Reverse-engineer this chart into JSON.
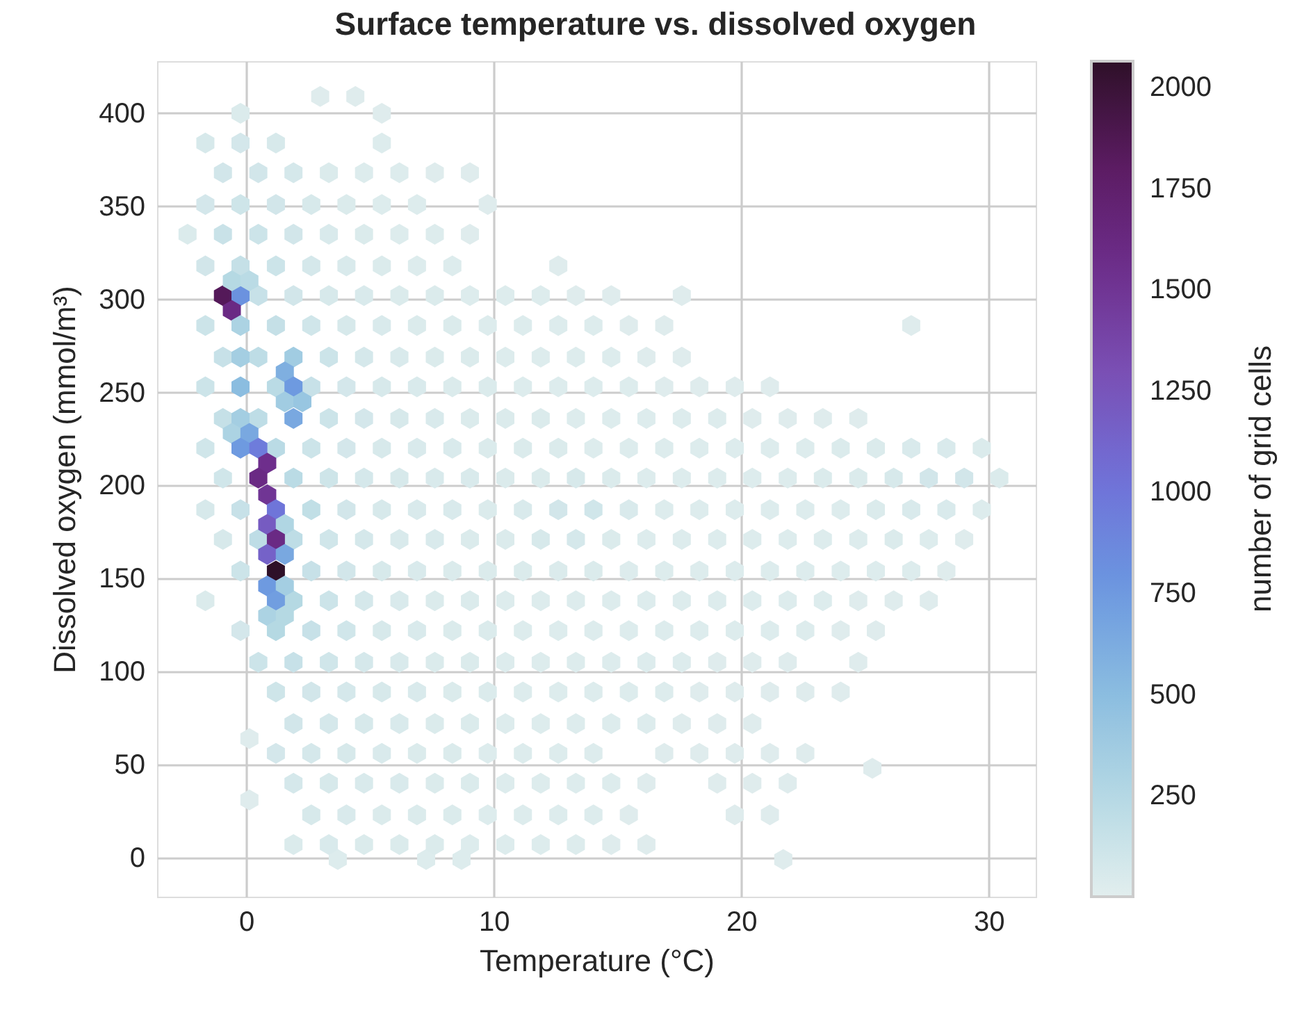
{
  "chart_data": {
    "type": "scatter",
    "title": "Surface temperature vs. dissolved oxygen",
    "xlabel": "Temperature (°C)",
    "ylabel": "Dissolved oxygen (mmol/m³)",
    "clabel": "number of grid cells",
    "xlim": [
      -3.6,
      31.9
    ],
    "xticks": [
      0,
      10,
      20,
      30
    ],
    "ylim": [
      -21,
      428
    ],
    "yticks": [
      0,
      50,
      100,
      150,
      200,
      250,
      300,
      350,
      400
    ],
    "clim": [
      1,
      2066
    ],
    "cticks": [
      250,
      500,
      750,
      1000,
      1250,
      1500,
      1750,
      2000
    ],
    "grid": true,
    "x": [
      2.99,
      4.41,
      -0.23,
      5.48,
      -1.65,
      -0.23,
      1.2,
      5.48,
      -0.94,
      0.49,
      1.91,
      3.34,
      4.76,
      6.19,
      7.62,
      9.04,
      -1.65,
      -0.23,
      1.2,
      2.63,
      4.05,
      5.48,
      6.9,
      9.76,
      -2.37,
      -0.94,
      0.49,
      1.91,
      3.34,
      4.76,
      6.19,
      7.62,
      9.04,
      -1.65,
      -0.23,
      1.2,
      2.63,
      4.05,
      5.48,
      6.9,
      8.33,
      12.61,
      0.49,
      1.91,
      3.34,
      4.76,
      6.19,
      7.62,
      9.04,
      10.47,
      11.9,
      13.32,
      14.75,
      17.6,
      -1.65,
      1.2,
      2.63,
      4.05,
      5.48,
      6.9,
      8.33,
      9.76,
      11.18,
      12.61,
      14.03,
      15.46,
      16.89,
      26.87,
      -0.94,
      0.49,
      3.34,
      4.76,
      6.19,
      7.62,
      9.04,
      10.47,
      11.9,
      13.32,
      14.75,
      16.17,
      17.6,
      -1.65,
      1.2,
      2.63,
      4.05,
      5.48,
      6.9,
      8.33,
      9.76,
      11.18,
      12.61,
      14.03,
      15.46,
      16.89,
      18.31,
      19.74,
      21.16,
      -0.94,
      0.49,
      3.34,
      4.76,
      6.19,
      7.62,
      9.04,
      10.47,
      11.9,
      13.32,
      14.75,
      16.17,
      17.6,
      19.03,
      20.45,
      21.88,
      23.3,
      24.73,
      -1.65,
      1.2,
      2.63,
      4.05,
      5.48,
      6.9,
      8.33,
      9.76,
      11.18,
      12.61,
      14.03,
      15.46,
      16.89,
      18.31,
      19.74,
      21.16,
      22.59,
      24.02,
      25.44,
      26.87,
      28.29,
      29.72,
      -0.94,
      1.91,
      3.34,
      4.76,
      6.19,
      7.62,
      9.04,
      10.47,
      11.9,
      13.32,
      14.75,
      16.17,
      17.6,
      19.03,
      20.45,
      21.88,
      23.3,
      24.73,
      26.16,
      27.58,
      29.01,
      30.43,
      -1.65,
      -0.23,
      2.63,
      4.05,
      5.48,
      6.9,
      8.33,
      9.76,
      11.18,
      12.61,
      14.03,
      15.46,
      16.89,
      18.31,
      19.74,
      21.16,
      22.59,
      24.02,
      25.44,
      26.87,
      28.29,
      29.72,
      -0.94,
      0.49,
      1.91,
      3.34,
      4.76,
      6.19,
      7.62,
      9.04,
      10.47,
      11.9,
      13.32,
      14.75,
      16.17,
      17.6,
      19.03,
      20.45,
      21.88,
      23.3,
      24.73,
      26.16,
      27.58,
      29.01,
      -0.23,
      2.63,
      4.05,
      5.48,
      6.9,
      8.33,
      9.76,
      11.18,
      12.61,
      14.03,
      15.46,
      16.89,
      18.31,
      19.74,
      21.16,
      22.59,
      24.02,
      25.44,
      26.87,
      28.29,
      -1.65,
      1.91,
      3.34,
      4.76,
      6.19,
      7.62,
      9.04,
      10.47,
      11.9,
      13.32,
      14.75,
      16.17,
      17.6,
      19.03,
      20.45,
      21.88,
      23.3,
      24.73,
      26.16,
      27.58,
      -0.23,
      2.63,
      4.05,
      5.48,
      6.9,
      8.33,
      9.76,
      11.18,
      12.61,
      14.03,
      15.46,
      16.89,
      18.31,
      19.74,
      21.16,
      22.59,
      24.02,
      25.44,
      0.49,
      1.91,
      3.34,
      4.76,
      6.19,
      7.62,
      9.04,
      10.47,
      11.9,
      13.32,
      14.75,
      16.17,
      17.6,
      19.03,
      20.45,
      21.88,
      24.73,
      1.2,
      2.63,
      4.05,
      5.48,
      6.9,
      8.33,
      9.76,
      11.18,
      12.61,
      14.03,
      15.46,
      16.89,
      18.31,
      19.74,
      21.16,
      22.59,
      24.02,
      1.91,
      3.34,
      4.76,
      6.19,
      7.62,
      9.04,
      10.47,
      11.9,
      13.32,
      14.75,
      16.17,
      17.6,
      19.03,
      20.45,
      0.13,
      25.3,
      0.13,
      3.7,
      7.27,
      8.7,
      21.7,
      1.2,
      2.63,
      4.05,
      5.48,
      6.9,
      8.33,
      9.76,
      11.18,
      12.61,
      14.03,
      16.89,
      18.31,
      19.74,
      21.16,
      22.59,
      1.91,
      3.34,
      4.76,
      6.19,
      7.62,
      9.04,
      10.47,
      11.9,
      13.32,
      14.75,
      16.17,
      19.03,
      20.45,
      21.88,
      2.63,
      4.05,
      5.48,
      6.9,
      8.33,
      9.76,
      11.18,
      12.61,
      14.03,
      15.46,
      19.74,
      21.16,
      1.91,
      3.34,
      4.76,
      6.19,
      7.62,
      9.04,
      10.47,
      11.9,
      13.32,
      14.75,
      16.17,
      -0.94,
      -0.23,
      -0.58,
      -0.58,
      0.13,
      -0.23,
      -0.23,
      -0.23,
      -0.23,
      -0.58,
      0.13,
      -0.23,
      0.49,
      0.85,
      0.49,
      0.85,
      1.2,
      0.85,
      1.56,
      1.2,
      0.85,
      1.56,
      1.2,
      0.85,
      1.56,
      1.2,
      0.85,
      1.56,
      1.2,
      1.91,
      1.56,
      1.91,
      1.56,
      2.27,
      1.91
    ],
    "values": [
      409,
      409,
      400,
      400,
      384,
      384,
      384,
      384,
      368,
      368,
      368,
      368,
      368,
      368,
      368,
      368,
      351,
      351,
      351,
      351,
      351,
      351,
      351,
      351,
      335,
      335,
      335,
      335,
      335,
      335,
      335,
      335,
      335,
      318,
      318,
      318,
      318,
      318,
      318,
      318,
      318,
      318,
      302,
      302,
      302,
      302,
      302,
      302,
      302,
      302,
      302,
      302,
      302,
      302,
      286,
      286,
      286,
      286,
      286,
      286,
      286,
      286,
      286,
      286,
      286,
      286,
      286,
      286,
      269,
      269,
      269,
      269,
      269,
      269,
      269,
      269,
      269,
      269,
      269,
      269,
      269,
      253,
      253,
      253,
      253,
      253,
      253,
      253,
      253,
      253,
      253,
      253,
      253,
      253,
      253,
      253,
      253,
      236,
      236,
      236,
      236,
      236,
      236,
      236,
      236,
      236,
      236,
      236,
      236,
      236,
      236,
      236,
      236,
      236,
      236,
      220,
      220,
      220,
      220,
      220,
      220,
      220,
      220,
      220,
      220,
      220,
      220,
      220,
      220,
      220,
      220,
      220,
      220,
      220,
      220,
      220,
      220,
      204,
      204,
      204,
      204,
      204,
      204,
      204,
      204,
      204,
      204,
      204,
      204,
      204,
      204,
      204,
      204,
      204,
      204,
      204,
      204,
      204,
      204,
      187,
      187,
      187,
      187,
      187,
      187,
      187,
      187,
      187,
      187,
      187,
      187,
      187,
      187,
      187,
      187,
      187,
      187,
      187,
      187,
      187,
      187,
      171,
      171,
      171,
      171,
      171,
      171,
      171,
      171,
      171,
      171,
      171,
      171,
      171,
      171,
      171,
      171,
      171,
      171,
      171,
      171,
      171,
      171,
      154,
      154,
      154,
      154,
      154,
      154,
      154,
      154,
      154,
      154,
      154,
      154,
      154,
      154,
      154,
      154,
      154,
      154,
      154,
      154,
      138,
      138,
      138,
      138,
      138,
      138,
      138,
      138,
      138,
      138,
      138,
      138,
      138,
      138,
      138,
      138,
      138,
      138,
      138,
      138,
      122,
      122,
      122,
      122,
      122,
      122,
      122,
      122,
      122,
      122,
      122,
      122,
      122,
      122,
      122,
      122,
      122,
      122,
      105,
      105,
      105,
      105,
      105,
      105,
      105,
      105,
      105,
      105,
      105,
      105,
      105,
      105,
      105,
      105,
      105,
      89,
      89,
      89,
      89,
      89,
      89,
      89,
      89,
      89,
      89,
      89,
      89,
      89,
      89,
      89,
      89,
      89,
      72,
      72,
      72,
      72,
      72,
      72,
      72,
      72,
      72,
      72,
      72,
      72,
      72,
      72,
      64,
      48,
      31,
      -1,
      -1,
      -1,
      -1,
      56,
      56,
      56,
      56,
      56,
      56,
      56,
      56,
      56,
      56,
      56,
      56,
      56,
      56,
      56,
      40,
      40,
      40,
      40,
      40,
      40,
      40,
      40,
      40,
      40,
      40,
      40,
      40,
      40,
      23,
      23,
      23,
      23,
      23,
      23,
      23,
      23,
      23,
      23,
      23,
      23,
      7,
      7,
      7,
      7,
      7,
      7,
      7,
      7,
      7,
      7,
      7,
      302,
      302,
      294,
      310,
      310,
      286,
      269,
      253,
      236,
      228,
      228,
      220,
      220,
      212,
      204,
      195,
      187,
      179,
      179,
      171,
      163,
      163,
      154,
      146,
      146,
      138,
      130,
      130,
      122,
      269,
      261,
      253,
      245,
      245,
      236
    ],
    "cvalues": [
      20,
      20,
      40,
      20,
      60,
      80,
      60,
      30,
      90,
      90,
      70,
      40,
      30,
      30,
      20,
      20,
      80,
      110,
      90,
      60,
      40,
      30,
      30,
      20,
      40,
      140,
      120,
      90,
      50,
      40,
      30,
      30,
      20,
      90,
      160,
      120,
      70,
      50,
      40,
      30,
      30,
      20,
      150,
      90,
      60,
      50,
      40,
      40,
      30,
      30,
      30,
      20,
      20,
      20,
      120,
      160,
      100,
      60,
      50,
      40,
      40,
      30,
      30,
      30,
      30,
      20,
      20,
      20,
      150,
      200,
      120,
      70,
      50,
      40,
      40,
      30,
      30,
      30,
      30,
      20,
      20,
      120,
      220,
      150,
      80,
      60,
      50,
      40,
      40,
      30,
      30,
      30,
      30,
      20,
      20,
      20,
      20,
      160,
      200,
      120,
      80,
      60,
      50,
      40,
      40,
      40,
      30,
      30,
      30,
      30,
      30,
      20,
      20,
      20,
      20,
      100,
      220,
      120,
      80,
      60,
      50,
      50,
      40,
      40,
      40,
      30,
      30,
      30,
      30,
      30,
      30,
      30,
      40,
      40,
      50,
      50,
      40,
      100,
      220,
      110,
      70,
      60,
      50,
      50,
      40,
      40,
      60,
      40,
      30,
      30,
      30,
      30,
      30,
      40,
      40,
      60,
      90,
      90,
      40,
      60,
      150,
      180,
      90,
      60,
      50,
      50,
      40,
      50,
      90,
      100,
      50,
      30,
      30,
      30,
      30,
      30,
      30,
      40,
      50,
      50,
      30,
      60,
      200,
      200,
      100,
      70,
      50,
      50,
      40,
      40,
      60,
      70,
      40,
      30,
      30,
      30,
      30,
      30,
      30,
      30,
      40,
      30,
      20,
      120,
      150,
      90,
      60,
      50,
      40,
      40,
      40,
      40,
      40,
      30,
      30,
      30,
      30,
      30,
      30,
      30,
      30,
      30,
      20,
      40,
      250,
      120,
      70,
      50,
      40,
      40,
      30,
      30,
      30,
      30,
      30,
      30,
      30,
      30,
      30,
      30,
      20,
      20,
      20,
      80,
      150,
      100,
      60,
      50,
      40,
      40,
      30,
      30,
      30,
      30,
      30,
      30,
      30,
      30,
      30,
      20,
      20,
      120,
      150,
      100,
      70,
      50,
      40,
      40,
      30,
      30,
      30,
      30,
      30,
      30,
      20,
      20,
      20,
      20,
      110,
      90,
      70,
      60,
      50,
      40,
      40,
      30,
      30,
      30,
      30,
      30,
      20,
      20,
      20,
      20,
      20,
      90,
      70,
      60,
      50,
      40,
      40,
      30,
      30,
      30,
      30,
      30,
      20,
      20,
      20,
      20,
      20,
      20,
      30,
      30,
      30,
      20,
      80,
      70,
      60,
      50,
      40,
      40,
      30,
      30,
      30,
      30,
      20,
      20,
      20,
      20,
      20,
      70,
      60,
      50,
      50,
      40,
      40,
      30,
      30,
      30,
      30,
      20,
      20,
      20,
      20,
      60,
      50,
      40,
      40,
      40,
      30,
      30,
      30,
      30,
      20,
      20,
      20,
      40,
      50,
      40,
      40,
      40,
      30,
      30,
      30,
      30,
      20,
      20,
      1850,
      800,
      1600,
      250,
      220,
      300,
      350,
      500,
      350,
      300,
      650,
      750,
      950,
      1550,
      1600,
      1500,
      1000,
      1200,
      280,
      1600,
      1150,
      650,
      2066,
      750,
      350,
      720,
      300,
      250,
      250,
      370,
      600,
      750,
      370,
      420,
      650
    ]
  }
}
